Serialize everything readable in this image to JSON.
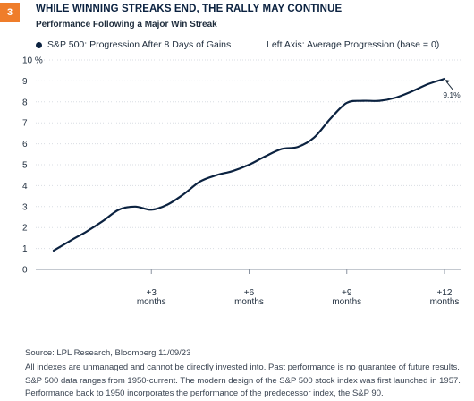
{
  "badge": "3",
  "chart_data": {
    "type": "line",
    "title": "WHILE WINNING STREAKS END, THE RALLY MAY CONTINUE",
    "subtitle": "Performance Following a Major Win Streak",
    "legend": "S&P 500: Progression After 8 Days of Gains",
    "axis_note": "Left Axis: Average Progression (base = 0)",
    "ylim": [
      0,
      10
    ],
    "yticks": [
      "10 %",
      "9",
      "8",
      "7",
      "6",
      "5",
      "4",
      "3",
      "2",
      "1",
      "0"
    ],
    "xticks": [
      {
        "top": "+3",
        "bottom": "months",
        "x": 3
      },
      {
        "top": "+6",
        "bottom": "months",
        "x": 6
      },
      {
        "top": "+9",
        "bottom": "months",
        "x": 9
      },
      {
        "top": "+12",
        "bottom": "months",
        "x": 12
      }
    ],
    "xlim": [
      0,
      12
    ],
    "series": [
      {
        "name": "S&P 500: Progression After 8 Days of Gains",
        "color": "#0b2240",
        "x": [
          0,
          0.6,
          1,
          1.5,
          2,
          2.5,
          3,
          3.5,
          4,
          4.5,
          5,
          5.5,
          6,
          6.5,
          7,
          7.5,
          8,
          8.5,
          9,
          9.5,
          10,
          10.5,
          11,
          11.5,
          12
        ],
        "values": [
          0.9,
          1.45,
          1.8,
          2.3,
          2.85,
          3.0,
          2.85,
          3.1,
          3.6,
          4.2,
          4.5,
          4.7,
          5.0,
          5.4,
          5.75,
          5.85,
          6.3,
          7.2,
          7.95,
          8.05,
          8.05,
          8.2,
          8.5,
          8.85,
          9.1
        ]
      }
    ],
    "annotation": "9.1%"
  },
  "footer": {
    "source": "Source: LPL Research, Bloomberg 11/09/23",
    "line1": "All indexes are unmanaged and cannot be directly invested into. Past performance is no guarantee of future results.",
    "line2": "S&P 500  data ranges from 1950-current. The modern design of the S&P 500 stock index was first launched in 1957.",
    "line3": "Performance back to 1950 incorporates the performance of the predecessor index, the S&P 90."
  }
}
